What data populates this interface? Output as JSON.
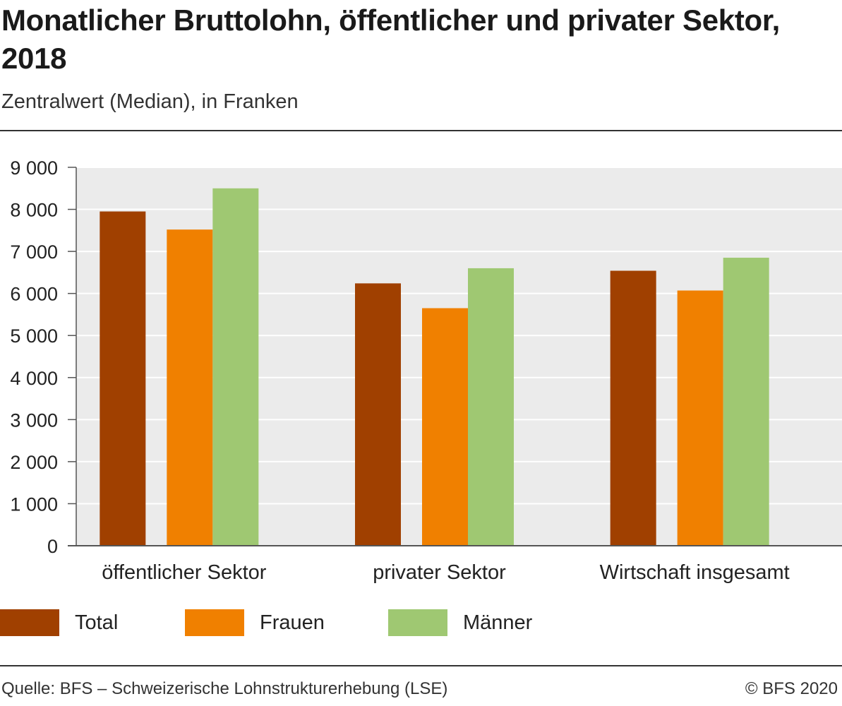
{
  "header": {
    "title": "Monatlicher Bruttolohn, öffentlicher und privater Sektor, 2018",
    "subtitle": "Zentralwert (Median), in Franken"
  },
  "footer": {
    "source": "Quelle: BFS – Schweizerische Lohnstrukturerhebung (LSE)",
    "copyright": "© BFS 2020"
  },
  "colors": {
    "background_plot": "#ebebeb",
    "grid": "#ffffff",
    "axis": "#555555"
  },
  "chart_data": {
    "type": "bar",
    "title": "Monatlicher Bruttolohn, öffentlicher und privater Sektor, 2018",
    "subtitle": "Zentralwert (Median), in Franken",
    "categories": [
      "öffentlicher Sektor",
      "privater Sektor",
      "Wirtschaft insgesamt"
    ],
    "series": [
      {
        "name": "Total",
        "color": "#a04000",
        "values": [
          7950,
          6240,
          6540
        ]
      },
      {
        "name": "Frauen",
        "color": "#f08000",
        "values": [
          7520,
          5650,
          6070
        ]
      },
      {
        "name": "Männer",
        "color": "#9fc872",
        "values": [
          8500,
          6600,
          6850
        ]
      }
    ],
    "ylim": [
      0,
      9000
    ],
    "yticks": [
      0,
      1000,
      2000,
      3000,
      4000,
      5000,
      6000,
      7000,
      8000,
      9000
    ],
    "ytick_labels": [
      "0",
      "1 000",
      "2 000",
      "3 000",
      "4 000",
      "5 000",
      "6 000",
      "7 000",
      "8 000",
      "9 000"
    ],
    "xlabel": "",
    "ylabel": "",
    "grid": true,
    "legend_position": "bottom-left"
  }
}
